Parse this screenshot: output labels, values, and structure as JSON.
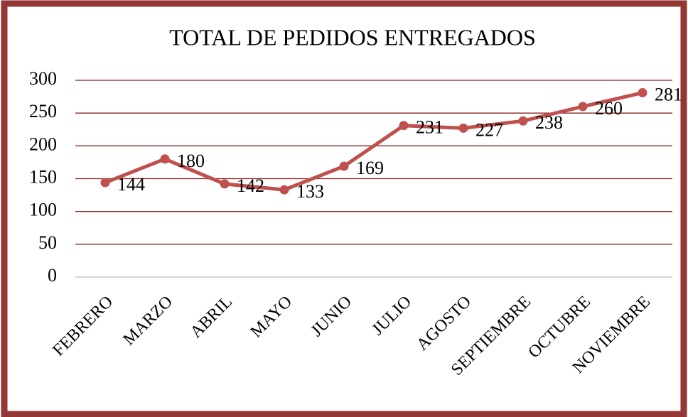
{
  "chart_data": {
    "type": "line",
    "title": "TOTAL DE PEDIDOS ENTREGADOS",
    "categories": [
      "FEBRERO",
      "MARZO",
      "ABRIL",
      "MAYO",
      "JUNIO",
      "JULIO",
      "AGOSTO",
      "SEPTIEMBRE",
      "OCTUBRE",
      "NOVIEMBRE"
    ],
    "series": [
      {
        "name": "TOTAL DE PEDIDOS ENTREGADOS",
        "color": "#c0504d",
        "values": [
          144,
          180,
          142,
          133,
          169,
          231,
          227,
          238,
          260,
          281
        ]
      }
    ],
    "ylim": [
      0,
      300
    ],
    "yticks": [
      0,
      50,
      100,
      150,
      200,
      250,
      300
    ],
    "grid": true
  }
}
